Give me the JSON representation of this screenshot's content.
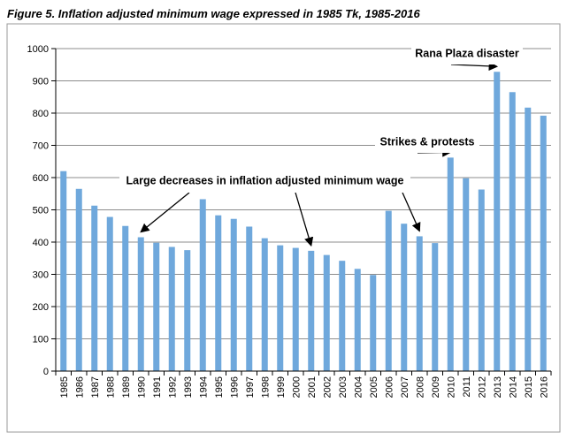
{
  "title": "Figure 5. Inflation adjusted minimum wage expressed in 1985 Tk, 1985-2016",
  "chart_data": {
    "type": "bar",
    "title": "Figure 5. Inflation adjusted minimum wage expressed in 1985 Tk, 1985-2016",
    "xlabel": "",
    "ylabel": "",
    "categories": [
      "1985",
      "1986",
      "1987",
      "1988",
      "1989",
      "1990",
      "1991",
      "1992",
      "1993",
      "1994",
      "1995",
      "1996",
      "1997",
      "1998",
      "1999",
      "2000",
      "2001",
      "2002",
      "2003",
      "2004",
      "2005",
      "2006",
      "2007",
      "2008",
      "2009",
      "2010",
      "2011",
      "2012",
      "2013",
      "2014",
      "2015",
      "2016"
    ],
    "values": [
      620,
      565,
      513,
      478,
      450,
      415,
      398,
      385,
      375,
      533,
      483,
      472,
      448,
      412,
      390,
      382,
      373,
      360,
      342,
      317,
      298,
      497,
      457,
      418,
      397,
      662,
      598,
      563,
      928,
      865,
      817,
      792
    ],
    "ylim": [
      0,
      1000
    ],
    "yticks": [
      0,
      100,
      200,
      300,
      400,
      500,
      600,
      700,
      800,
      900,
      1000
    ],
    "grid": true,
    "bar_color": "#6fa8dc",
    "annotations": [
      {
        "text": "Large decreases in inflation adjusted minimum wage",
        "targets": [
          "1990",
          "2001",
          "2008"
        ]
      },
      {
        "text": "Strikes & protests",
        "targets": [
          "2010"
        ]
      },
      {
        "text": "Rana Plaza disaster",
        "targets": [
          "2013"
        ]
      }
    ]
  }
}
